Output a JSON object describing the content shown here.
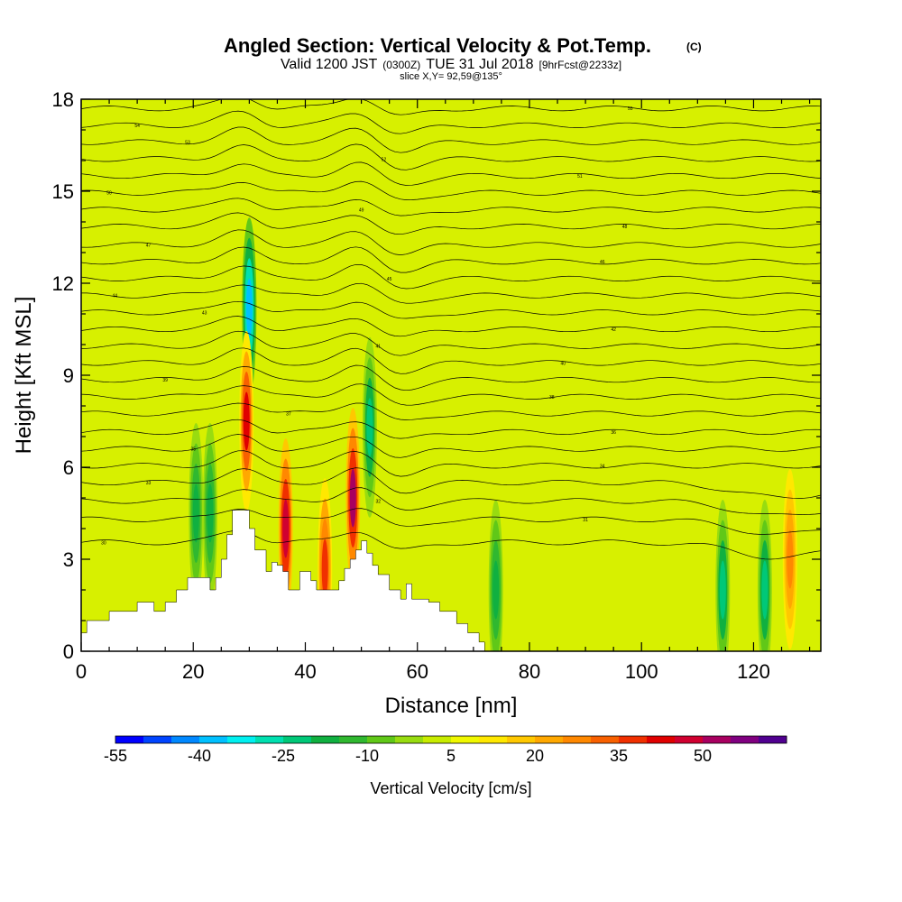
{
  "title": {
    "main": "Angled Section: Vertical Velocity & Pot.Temp.",
    "unit_tag": "(C)",
    "valid_a": "Valid 1200 JST",
    "valid_b": "(0300Z)",
    "valid_c": "TUE 31 Jul 2018",
    "valid_d": "[9hrFcst@2233z]",
    "slice": "slice X,Y= 92,59@135°"
  },
  "chart_data": {
    "type": "heatmap",
    "xlabel": "Distance [nm]",
    "ylabel": "Height [Kft MSL]",
    "xlim": [
      0,
      132
    ],
    "ylim": [
      0,
      18
    ],
    "x_ticks": [
      0,
      20,
      40,
      60,
      80,
      100,
      120
    ],
    "y_ticks": [
      0,
      3,
      6,
      9,
      12,
      15,
      18
    ],
    "colorbar": {
      "label": "Vertical Velocity [cm/s]",
      "labels": [
        "-55",
        "-40",
        "-25",
        "-10",
        "5",
        "20",
        "35",
        "50"
      ],
      "bins": [
        -60,
        -55,
        -50,
        -45,
        -40,
        -35,
        -30,
        -25,
        -20,
        -15,
        -10,
        -5,
        0,
        5,
        10,
        15,
        20,
        25,
        30,
        35,
        40,
        45,
        50,
        55,
        60
      ],
      "colors": [
        "#0000ff",
        "#0044ff",
        "#0088ff",
        "#00c0ff",
        "#00f0f0",
        "#00e0b0",
        "#00c878",
        "#10b040",
        "#30b830",
        "#60c818",
        "#98dc10",
        "#c8ec00",
        "#f0f800",
        "#ffe800",
        "#ffc800",
        "#ffa800",
        "#ff8800",
        "#f86000",
        "#f03000",
        "#e00000",
        "#d00030",
        "#a80060",
        "#800080",
        "#500090"
      ]
    },
    "velocity_features_cm_s": [
      {
        "x": 30,
        "y": 11.2,
        "value": -45
      },
      {
        "x": 29.5,
        "y": 7.5,
        "value": 35
      },
      {
        "x": 36.5,
        "y": 4.0,
        "value": 40
      },
      {
        "x": 48.5,
        "y": 5.0,
        "value": 45
      },
      {
        "x": 51.5,
        "y": 7.3,
        "value": -30
      },
      {
        "x": 43.5,
        "y": 2.7,
        "value": 30
      },
      {
        "x": 20.5,
        "y": 4.5,
        "value": -25
      },
      {
        "x": 23.0,
        "y": 4.5,
        "value": -25
      },
      {
        "x": 74.0,
        "y": 2.0,
        "value": -22
      },
      {
        "x": 114.5,
        "y": 2.0,
        "value": -30
      },
      {
        "x": 122.0,
        "y": 2.0,
        "value": -28
      },
      {
        "x": 126.5,
        "y": 3.0,
        "value": 22
      }
    ],
    "terrain_kft": [
      [
        0,
        0.6
      ],
      [
        1,
        1.0
      ],
      [
        5,
        1.3
      ],
      [
        10,
        1.6
      ],
      [
        13,
        1.3
      ],
      [
        15,
        1.6
      ],
      [
        17,
        2.0
      ],
      [
        19,
        2.4
      ],
      [
        23,
        2.0
      ],
      [
        24,
        2.4
      ],
      [
        25,
        3.0
      ],
      [
        26,
        3.8
      ],
      [
        27,
        4.6
      ],
      [
        29,
        4.6
      ],
      [
        30,
        4.0
      ],
      [
        31,
        3.3
      ],
      [
        33,
        2.6
      ],
      [
        34,
        2.9
      ],
      [
        35,
        2.8
      ],
      [
        36,
        2.6
      ],
      [
        37,
        2.0
      ],
      [
        39,
        2.6
      ],
      [
        41,
        2.3
      ],
      [
        42,
        2.0
      ],
      [
        45,
        2.0
      ],
      [
        46,
        2.3
      ],
      [
        47,
        2.7
      ],
      [
        48,
        3.0
      ],
      [
        49,
        3.3
      ],
      [
        50,
        3.6
      ],
      [
        51,
        3.2
      ],
      [
        52,
        2.8
      ],
      [
        53,
        2.5
      ],
      [
        55,
        2.0
      ],
      [
        57,
        1.7
      ],
      [
        58,
        2.2
      ],
      [
        59,
        1.7
      ],
      [
        62,
        1.6
      ],
      [
        64,
        1.3
      ],
      [
        67,
        0.9
      ],
      [
        69,
        0.6
      ],
      [
        71,
        0.3
      ],
      [
        72,
        0
      ]
    ],
    "theta_contours": [
      {
        "label": "30",
        "baseline": 3.55,
        "label_x": 4
      },
      {
        "label": "31",
        "baseline": 4.3,
        "label_x": 90
      },
      {
        "label": "32",
        "baseline": 4.9,
        "label_x": 53
      },
      {
        "label": "33",
        "baseline": 5.5,
        "label_x": 12
      },
      {
        "label": "34",
        "baseline": 6.05,
        "label_x": 93
      },
      {
        "label": "35",
        "baseline": 6.6,
        "label_x": 20
      },
      {
        "label": "36",
        "baseline": 7.15,
        "label_x": 95
      },
      {
        "label": "37",
        "baseline": 7.75,
        "label_x": 37
      },
      {
        "label": "38",
        "baseline": 8.3,
        "label_x": 84
      },
      {
        "label": "39",
        "baseline": 8.85,
        "label_x": 15
      },
      {
        "label": "40",
        "baseline": 9.4,
        "label_x": 86
      },
      {
        "label": "41",
        "baseline": 9.95,
        "label_x": 53
      },
      {
        "label": "42",
        "baseline": 10.5,
        "label_x": 95
      },
      {
        "label": "43",
        "baseline": 11.05,
        "label_x": 22
      },
      {
        "label": "44",
        "baseline": 11.6,
        "label_x": 6
      },
      {
        "label": "45",
        "baseline": 12.15,
        "label_x": 55
      },
      {
        "label": "46",
        "baseline": 12.7,
        "label_x": 93
      },
      {
        "label": "47",
        "baseline": 13.25,
        "label_x": 12
      },
      {
        "label": "48",
        "baseline": 13.85,
        "label_x": 97
      },
      {
        "label": "49",
        "baseline": 14.4,
        "label_x": 50
      },
      {
        "label": "50",
        "baseline": 14.95,
        "label_x": 5
      },
      {
        "label": "51",
        "baseline": 15.5,
        "label_x": 89
      },
      {
        "label": "52",
        "baseline": 16.05,
        "label_x": 54
      },
      {
        "label": "53",
        "baseline": 16.6,
        "label_x": 19
      },
      {
        "label": "54",
        "baseline": 17.15,
        "label_x": 10
      },
      {
        "label": "55",
        "baseline": 17.7,
        "label_x": 98
      }
    ]
  }
}
